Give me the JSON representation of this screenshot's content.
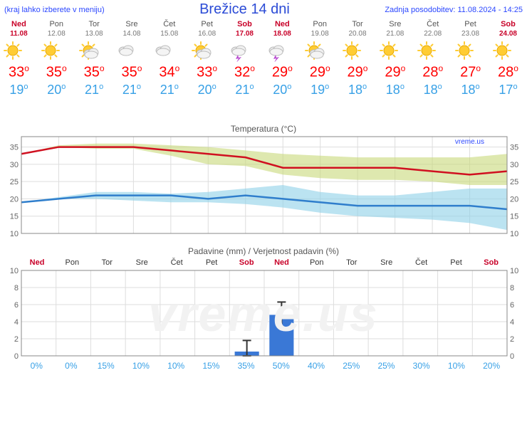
{
  "header": {
    "hint": "(kraj lahko izberete v meniju)",
    "title": "Brežice 14 dni",
    "updated": "Zadnja posodobitev: 11.08.2024 - 14:25"
  },
  "days": [
    {
      "dow": "Ned",
      "date": "11.08",
      "weekend": true,
      "icon": "sun",
      "hi": 33,
      "lo": 19,
      "prob": 0
    },
    {
      "dow": "Pon",
      "date": "12.08",
      "weekend": false,
      "icon": "sun",
      "hi": 35,
      "lo": 20,
      "prob": 0
    },
    {
      "dow": "Tor",
      "date": "13.08",
      "weekend": false,
      "icon": "psun",
      "hi": 35,
      "lo": 21,
      "prob": 15
    },
    {
      "dow": "Sre",
      "date": "14.08",
      "weekend": false,
      "icon": "cloud",
      "hi": 35,
      "lo": 21,
      "prob": 10
    },
    {
      "dow": "Čet",
      "date": "15.08",
      "weekend": false,
      "icon": "cloud",
      "hi": 34,
      "lo": 21,
      "prob": 10
    },
    {
      "dow": "Pet",
      "date": "16.08",
      "weekend": false,
      "icon": "psun",
      "hi": 33,
      "lo": 20,
      "prob": 15
    },
    {
      "dow": "Sob",
      "date": "17.08",
      "weekend": true,
      "icon": "tstorm",
      "hi": 32,
      "lo": 21,
      "prob": 35,
      "precip": 0.5,
      "err": 1.3
    },
    {
      "dow": "Ned",
      "date": "18.08",
      "weekend": true,
      "icon": "tstorm",
      "hi": 29,
      "lo": 20,
      "prob": 50,
      "precip": 4.8,
      "err": 1.5
    },
    {
      "dow": "Pon",
      "date": "19.08",
      "weekend": false,
      "icon": "psun",
      "hi": 29,
      "lo": 19,
      "prob": 40
    },
    {
      "dow": "Tor",
      "date": "20.08",
      "weekend": false,
      "icon": "sun",
      "hi": 29,
      "lo": 18,
      "prob": 25
    },
    {
      "dow": "Sre",
      "date": "21.08",
      "weekend": false,
      "icon": "sun",
      "hi": 29,
      "lo": 18,
      "prob": 25
    },
    {
      "dow": "Čet",
      "date": "22.08",
      "weekend": false,
      "icon": "sun",
      "hi": 28,
      "lo": 18,
      "prob": 30
    },
    {
      "dow": "Pet",
      "date": "23.08",
      "weekend": false,
      "icon": "sun",
      "hi": 27,
      "lo": 18,
      "prob": 10
    },
    {
      "dow": "Sob",
      "date": "24.08",
      "weekend": true,
      "icon": "sun",
      "hi": 28,
      "lo": 17,
      "prob": 20
    }
  ],
  "tempChart": {
    "title": "Temperatura (°C)",
    "attrib": "vreme.us",
    "ylim": [
      10,
      38
    ],
    "yticks": [
      10,
      15,
      20,
      25,
      30,
      35
    ],
    "hi": [
      33,
      35,
      35,
      35,
      34,
      33,
      32,
      29,
      29,
      29,
      29,
      28,
      27,
      28
    ],
    "hiBandTop": [
      33,
      35.5,
      36,
      36,
      35.5,
      35,
      34,
      33,
      32.5,
      32,
      32,
      32,
      32,
      33
    ],
    "hiBandBot": [
      33,
      35,
      34.5,
      34.5,
      32.5,
      30,
      29.5,
      27,
      26,
      25.5,
      25.5,
      25,
      24,
      24
    ],
    "lo": [
      19,
      20,
      21,
      21,
      21,
      20,
      21,
      20,
      19,
      18,
      18,
      18,
      18,
      17
    ],
    "loBandTop": [
      19,
      20.5,
      22,
      22,
      21.5,
      22,
      23,
      24,
      22,
      21,
      21,
      22,
      23,
      23
    ],
    "loBandBot": [
      19,
      20,
      20,
      19.5,
      19,
      19,
      18.5,
      17.5,
      16,
      15,
      14.5,
      14,
      13,
      11
    ],
    "hiColor": "#d01020",
    "hiFill": "#c8d97a",
    "loColor": "#2f7ecc",
    "loFill": "#8ed1e8",
    "gridColor": "#dddddd",
    "axisColor": "#888888",
    "tickFont": 11
  },
  "precipChart": {
    "title": "Padavine (mm) / Verjetnost padavin (%)",
    "ylim": [
      0,
      10
    ],
    "yticks": [
      0,
      2,
      4,
      6,
      8,
      10
    ],
    "barColor": "#3a78d6",
    "errColor": "#333333",
    "gridColor": "#dddddd",
    "axisColor": "#888888",
    "watermark": "vreme.us"
  }
}
